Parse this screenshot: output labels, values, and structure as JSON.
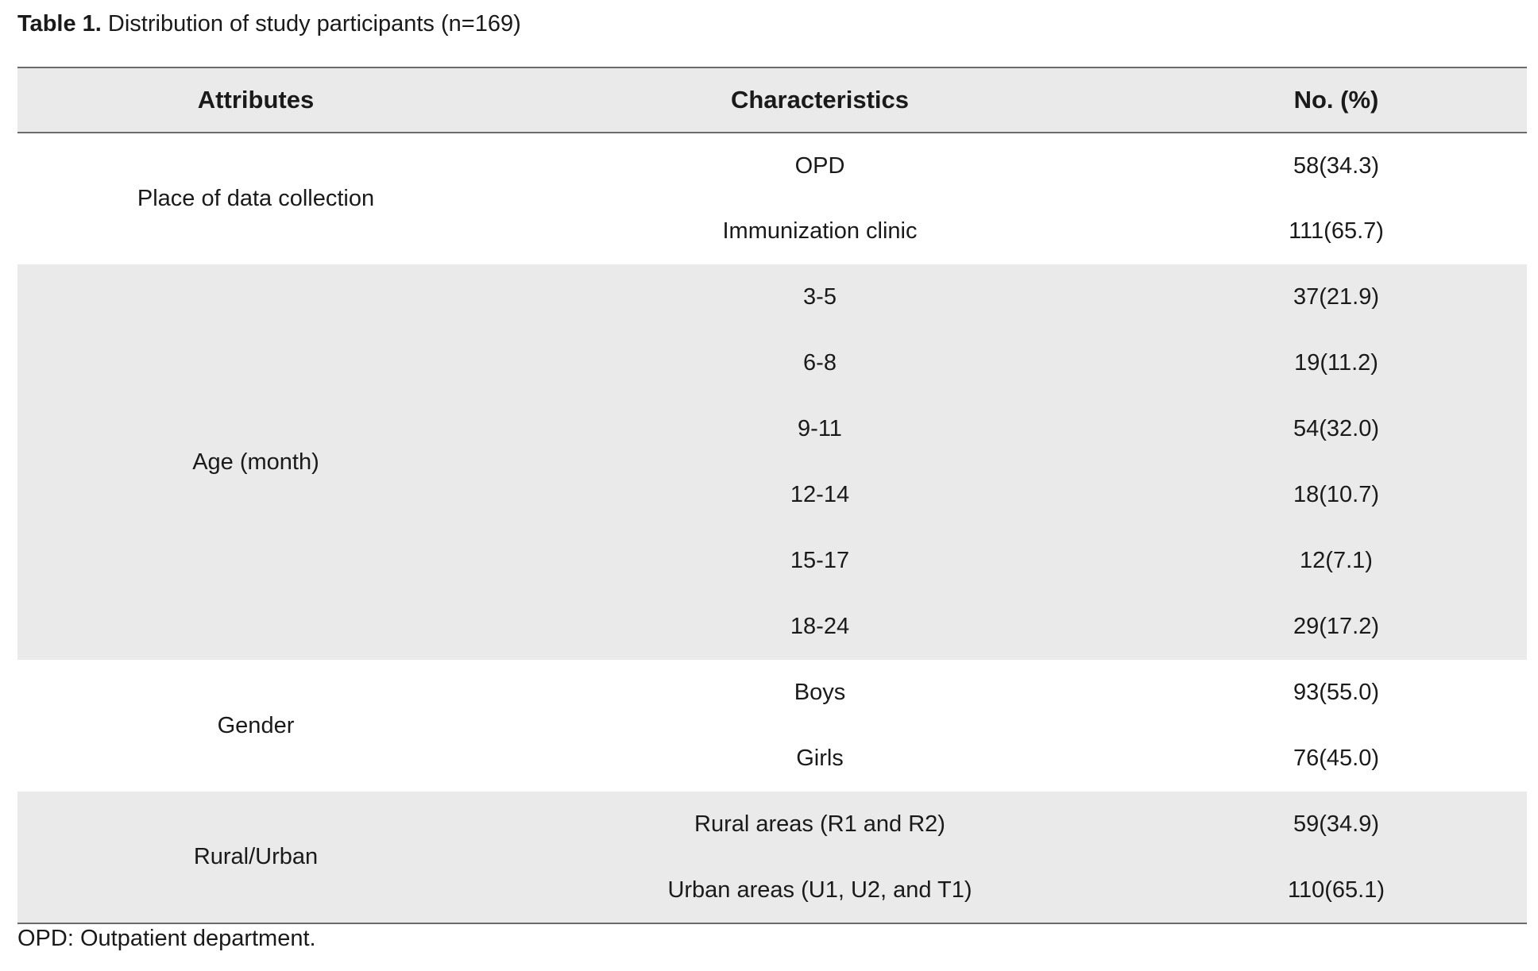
{
  "caption": {
    "label": "Table 1.",
    "text": " Distribution of study participants (n=169)"
  },
  "table": {
    "headers": [
      "Attributes",
      "Characteristics",
      "No. (%)"
    ],
    "groups": [
      {
        "attribute": "Place of data collection",
        "rows": [
          {
            "characteristic": "OPD",
            "value": "58(34.3)"
          },
          {
            "characteristic": "Immunization clinic",
            "value": "111(65.7)"
          }
        ]
      },
      {
        "attribute": "Age (month)",
        "rows": [
          {
            "characteristic": "3-5",
            "value": "37(21.9)"
          },
          {
            "characteristic": "6-8",
            "value": "19(11.2)"
          },
          {
            "characteristic": "9-11",
            "value": "54(32.0)"
          },
          {
            "characteristic": "12-14",
            "value": "18(10.7)"
          },
          {
            "characteristic": "15-17",
            "value": "12(7.1)"
          },
          {
            "characteristic": "18-24",
            "value": "29(17.2)"
          }
        ]
      },
      {
        "attribute": "Gender",
        "rows": [
          {
            "characteristic": "Boys",
            "value": "93(55.0)"
          },
          {
            "characteristic": "Girls",
            "value": "76(45.0)"
          }
        ]
      },
      {
        "attribute": "Rural/Urban",
        "rows": [
          {
            "characteristic": "Rural areas (R1 and R2)",
            "value": "59(34.9)"
          },
          {
            "characteristic": "Urban areas (U1, U2, and T1)",
            "value": "110(65.1)"
          }
        ]
      }
    ]
  },
  "footnote": "OPD: Outpatient department.",
  "colors": {
    "shade": "#eaeaea",
    "rule": "#6b6b6b",
    "text": "#1a1a1a"
  }
}
